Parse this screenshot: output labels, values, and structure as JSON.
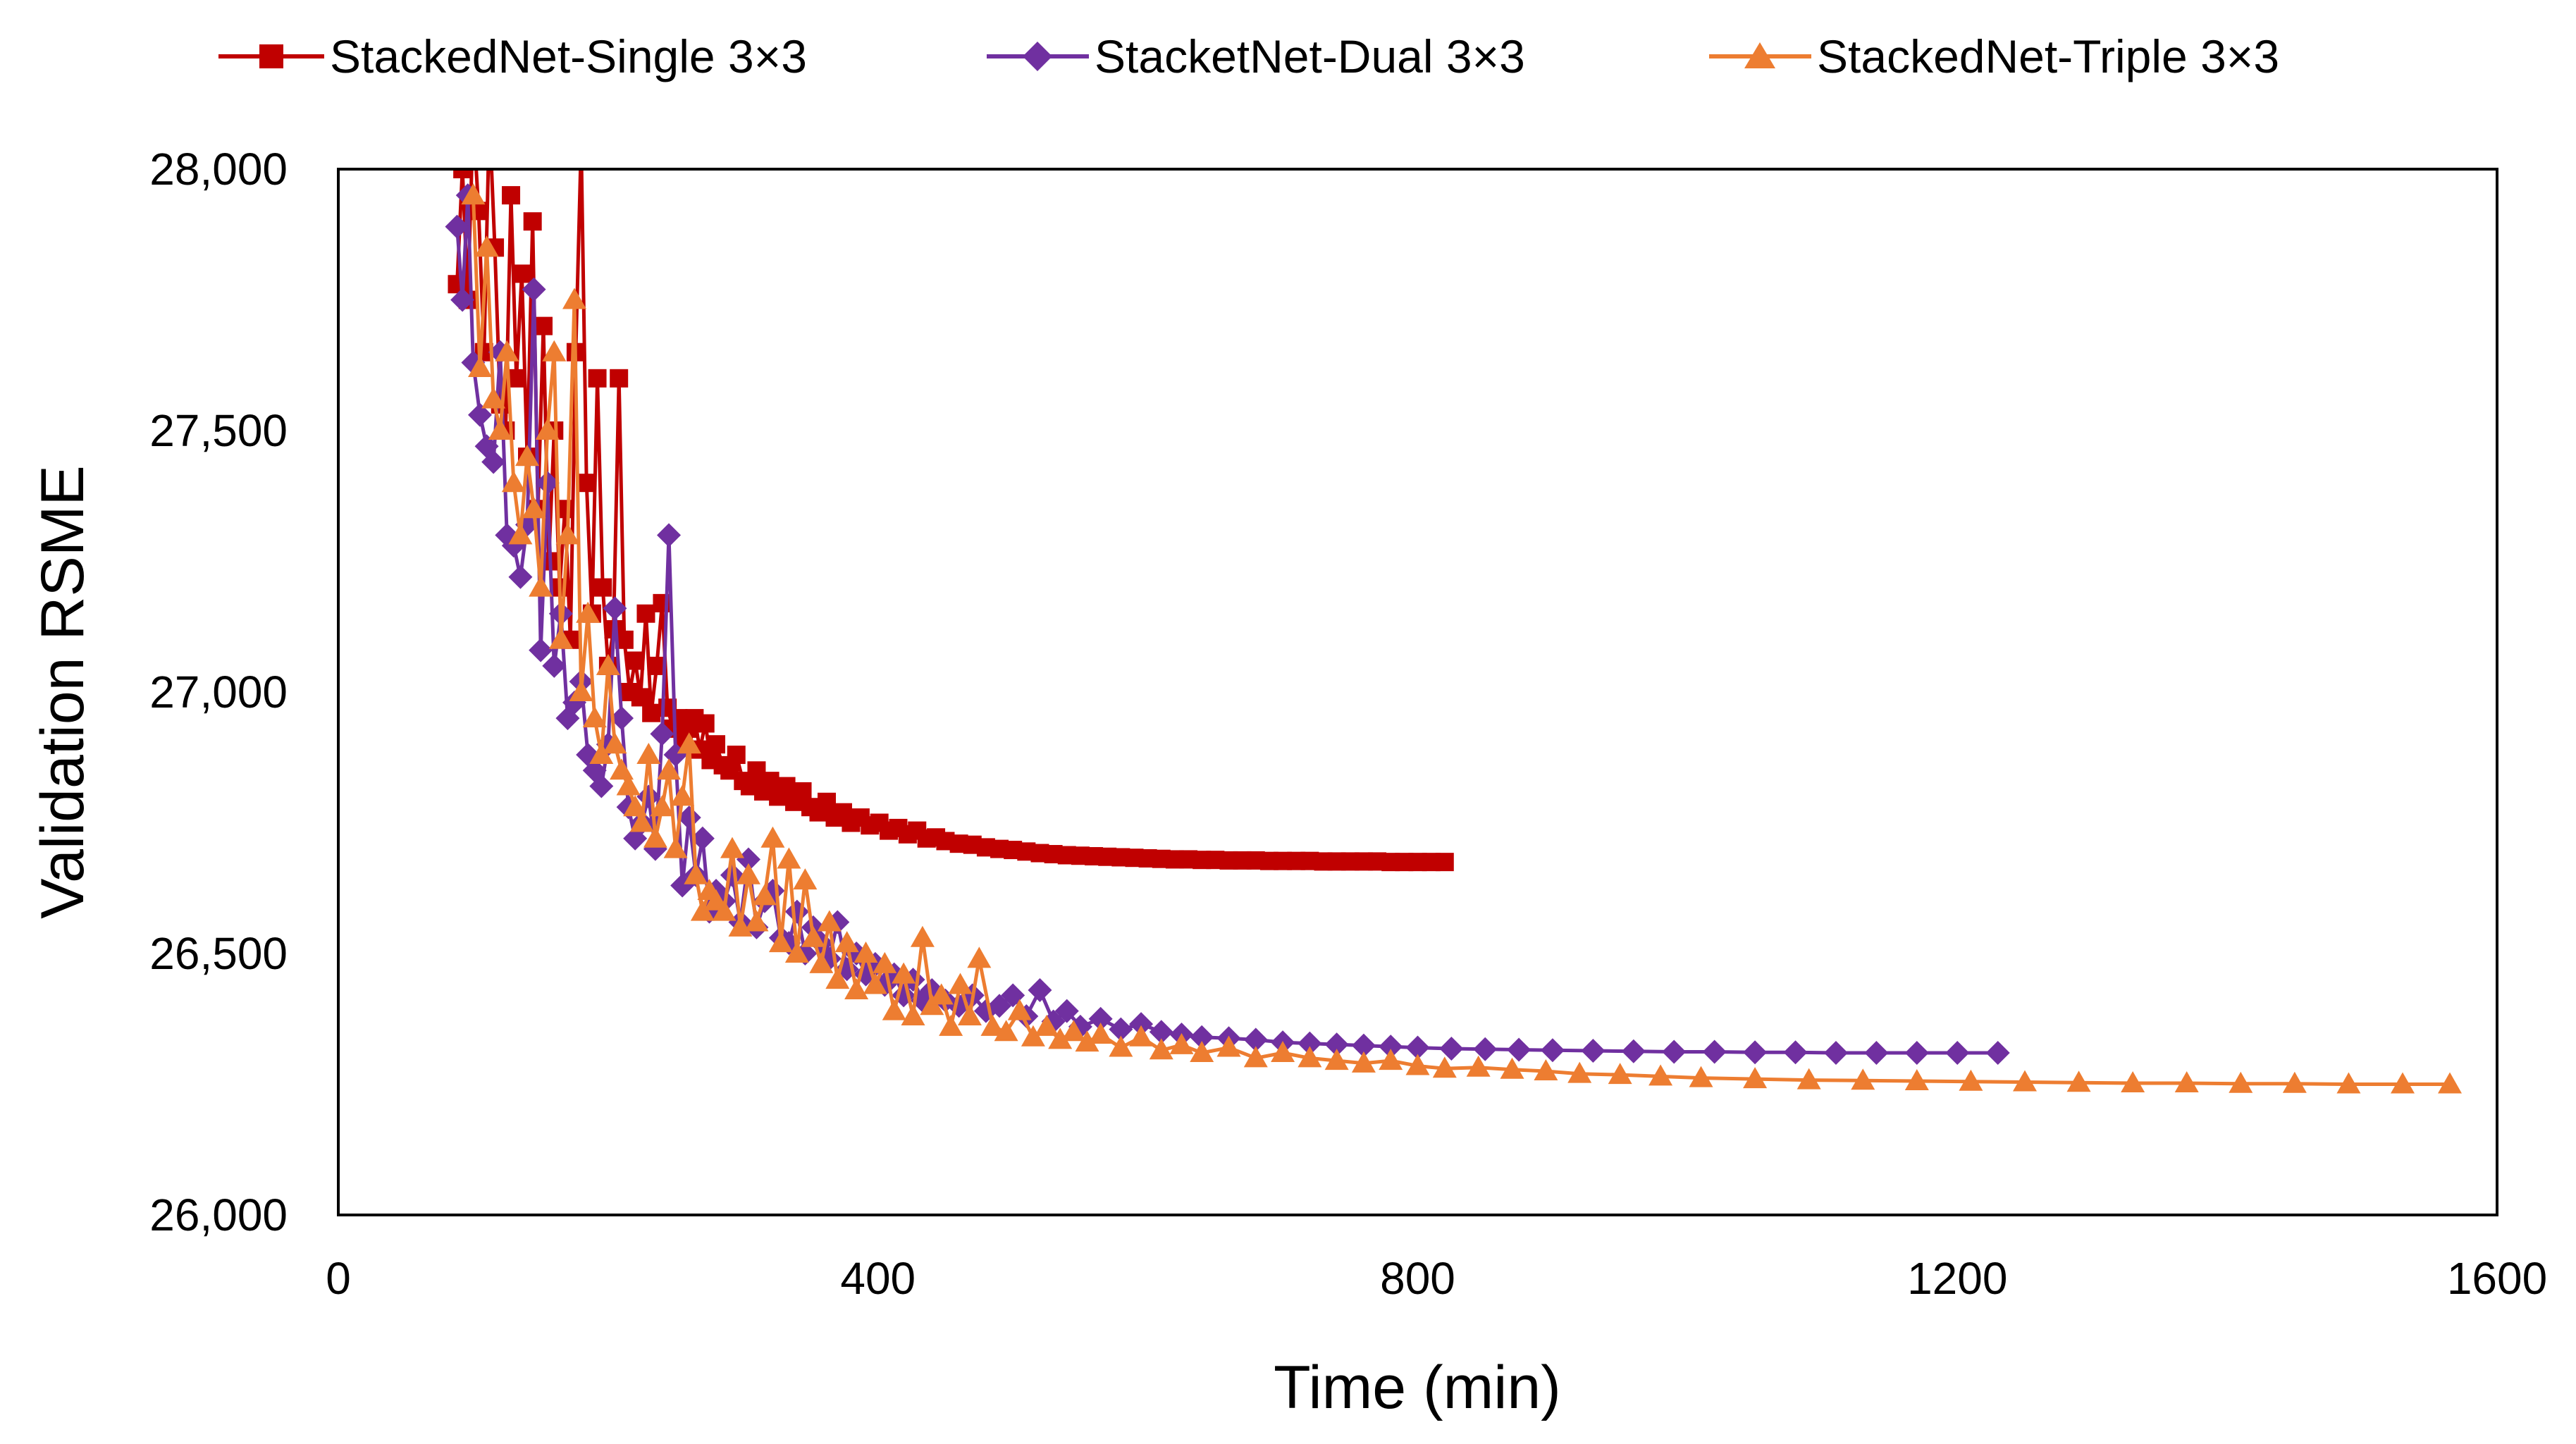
{
  "chart_data": {
    "type": "line",
    "title": "",
    "xlabel": "Time (min)",
    "ylabel": "Validation RSME",
    "xlim": [
      0,
      1600
    ],
    "ylim": [
      26000,
      28000
    ],
    "xticks": [
      0,
      400,
      800,
      1200,
      1600
    ],
    "yticks": [
      26000,
      26500,
      27000,
      27500,
      28000
    ],
    "xtick_labels": [
      "0",
      "400",
      "800",
      "1200",
      "1600"
    ],
    "ytick_labels": [
      "26,000",
      "26,500",
      "27,000",
      "27,500",
      "28,000"
    ],
    "grid": false,
    "legend_position": "top",
    "series": [
      {
        "name": "StackedNet-Single 3×3",
        "color": "#C00000",
        "marker": "square",
        "x": [
          88,
          92,
          96,
          100,
          104,
          108,
          112,
          116,
          120,
          124,
          128,
          132,
          136,
          140,
          144,
          148,
          152,
          156,
          160,
          164,
          168,
          172,
          176,
          180,
          184,
          188,
          192,
          196,
          200,
          204,
          208,
          212,
          216,
          220,
          224,
          228,
          232,
          236,
          240,
          244,
          248,
          252,
          256,
          260,
          264,
          268,
          272,
          276,
          280,
          285,
          290,
          295,
          300,
          305,
          310,
          315,
          320,
          326,
          332,
          338,
          344,
          350,
          356,
          362,
          368,
          374,
          380,
          387,
          394,
          401,
          408,
          415,
          422,
          429,
          436,
          443,
          450,
          460,
          470,
          480,
          490,
          500,
          510,
          520,
          530,
          540,
          550,
          560,
          570,
          580,
          590,
          600,
          610,
          620,
          630,
          640,
          650,
          660,
          670,
          680,
          690,
          700,
          710,
          720,
          730,
          740,
          750,
          760,
          770,
          780,
          790,
          800,
          810,
          820
        ],
        "y": [
          27780,
          28000,
          27750,
          28100,
          27920,
          27650,
          28100,
          27850,
          27550,
          27500,
          27950,
          27600,
          27800,
          27450,
          27900,
          27350,
          27700,
          27250,
          27500,
          27200,
          27350,
          27100,
          27650,
          28050,
          27400,
          27150,
          27600,
          27200,
          27050,
          27120,
          27600,
          27100,
          27000,
          27060,
          26990,
          27150,
          26960,
          27050,
          27170,
          26970,
          26930,
          26950,
          26900,
          26930,
          26950,
          26890,
          26940,
          26870,
          26900,
          26860,
          26850,
          26880,
          26830,
          26820,
          26850,
          26810,
          26830,
          26800,
          26820,
          26790,
          26810,
          26780,
          26770,
          26790,
          26760,
          26770,
          26750,
          26760,
          26745,
          26750,
          26735,
          26740,
          26728,
          26735,
          26720,
          26722,
          26715,
          26710,
          26708,
          26703,
          26700,
          26698,
          26695,
          26692,
          26690,
          26688,
          26687,
          26686,
          26685,
          26684,
          26683,
          26682,
          26681,
          26680,
          26680,
          26679,
          26679,
          26678,
          26678,
          26678,
          26677,
          26677,
          26677,
          26677,
          26676,
          26676,
          26676,
          26676,
          26676,
          26675,
          26675,
          26675,
          26675,
          26675
        ]
      },
      {
        "name": "StacketNet-Dual 3×3",
        "color": "#7030A0",
        "marker": "diamond",
        "x": [
          88,
          92,
          96,
          100,
          105,
          110,
          115,
          120,
          125,
          130,
          135,
          140,
          145,
          150,
          155,
          160,
          165,
          170,
          175,
          180,
          185,
          190,
          195,
          200,
          205,
          210,
          215,
          220,
          225,
          230,
          235,
          240,
          245,
          250,
          255,
          260,
          265,
          270,
          275,
          280,
          286,
          292,
          298,
          304,
          310,
          316,
          322,
          328,
          334,
          340,
          346,
          352,
          358,
          364,
          370,
          377,
          384,
          391,
          398,
          405,
          412,
          419,
          426,
          433,
          440,
          450,
          460,
          470,
          480,
          490,
          500,
          510,
          520,
          530,
          540,
          550,
          565,
          580,
          595,
          610,
          625,
          640,
          660,
          680,
          700,
          720,
          740,
          760,
          780,
          800,
          825,
          850,
          875,
          900,
          930,
          960,
          990,
          1020,
          1050,
          1080,
          1110,
          1140,
          1170,
          1200,
          1230
        ],
        "y": [
          27890,
          27750,
          27950,
          27630,
          27530,
          27470,
          27440,
          27650,
          27300,
          27280,
          27220,
          27320,
          27770,
          27080,
          27400,
          27050,
          27150,
          26950,
          26980,
          27020,
          26880,
          26850,
          26820,
          26900,
          27160,
          26950,
          26780,
          26720,
          26750,
          26800,
          26700,
          26920,
          27300,
          26880,
          26630,
          26760,
          26650,
          26720,
          26580,
          26620,
          26600,
          26650,
          26560,
          26680,
          26550,
          26600,
          26620,
          26530,
          26520,
          26580,
          26500,
          26550,
          26520,
          26490,
          26560,
          26470,
          26500,
          26460,
          26480,
          26440,
          26460,
          26420,
          26450,
          26410,
          26430,
          26410,
          26400,
          26420,
          26390,
          26400,
          26420,
          26380,
          26430,
          26370,
          26390,
          26360,
          26375,
          26355,
          26365,
          26350,
          26345,
          26340,
          26338,
          26335,
          26330,
          26328,
          26326,
          26324,
          26322,
          26320,
          26318,
          26317,
          26316,
          26315,
          26314,
          26313,
          26312,
          26312,
          26311,
          26311,
          26310,
          26310,
          26310,
          26310,
          26310
        ]
      },
      {
        "name": "StackedNet-Triple 3×3",
        "color": "#ED7D31",
        "marker": "triangle",
        "x": [
          100,
          105,
          110,
          115,
          120,
          125,
          130,
          135,
          140,
          145,
          150,
          155,
          160,
          165,
          170,
          175,
          180,
          185,
          190,
          195,
          200,
          205,
          210,
          215,
          220,
          225,
          230,
          235,
          240,
          245,
          250,
          255,
          260,
          265,
          270,
          275,
          280,
          286,
          292,
          298,
          304,
          310,
          316,
          322,
          328,
          334,
          340,
          346,
          352,
          358,
          364,
          370,
          377,
          384,
          391,
          398,
          405,
          412,
          419,
          426,
          433,
          440,
          447,
          454,
          461,
          468,
          475,
          485,
          495,
          505,
          515,
          525,
          535,
          545,
          555,
          565,
          580,
          595,
          610,
          625,
          640,
          660,
          680,
          700,
          720,
          740,
          760,
          780,
          800,
          820,
          845,
          870,
          895,
          920,
          950,
          980,
          1010,
          1050,
          1090,
          1130,
          1170,
          1210,
          1250,
          1290,
          1330,
          1370,
          1410,
          1450,
          1490,
          1530,
          1565
        ],
        "y": [
          27950,
          27620,
          27850,
          27560,
          27500,
          27650,
          27400,
          27300,
          27450,
          27350,
          27200,
          27500,
          27650,
          27100,
          27300,
          27750,
          27000,
          27150,
          26950,
          26880,
          27050,
          26900,
          26850,
          26820,
          26780,
          26750,
          26880,
          26720,
          26780,
          26850,
          26700,
          26800,
          26900,
          26650,
          26580,
          26620,
          26600,
          26580,
          26700,
          26550,
          26650,
          26560,
          26610,
          26720,
          26520,
          26680,
          26500,
          26640,
          26530,
          26480,
          26560,
          26450,
          26520,
          26430,
          26500,
          26440,
          26480,
          26390,
          26460,
          26380,
          26530,
          26400,
          26420,
          26360,
          26440,
          26380,
          26490,
          26360,
          26350,
          26390,
          26340,
          26360,
          26335,
          26350,
          26330,
          26345,
          26320,
          26340,
          26315,
          26325,
          26310,
          26320,
          26300,
          26310,
          26300,
          26295,
          26290,
          26295,
          26285,
          26280,
          26282,
          26278,
          26275,
          26270,
          26268,
          26265,
          26262,
          26260,
          26258,
          26257,
          26256,
          26255,
          26254,
          26253,
          26252,
          26252,
          26251,
          26251,
          26250,
          26250,
          26250
        ]
      }
    ]
  }
}
